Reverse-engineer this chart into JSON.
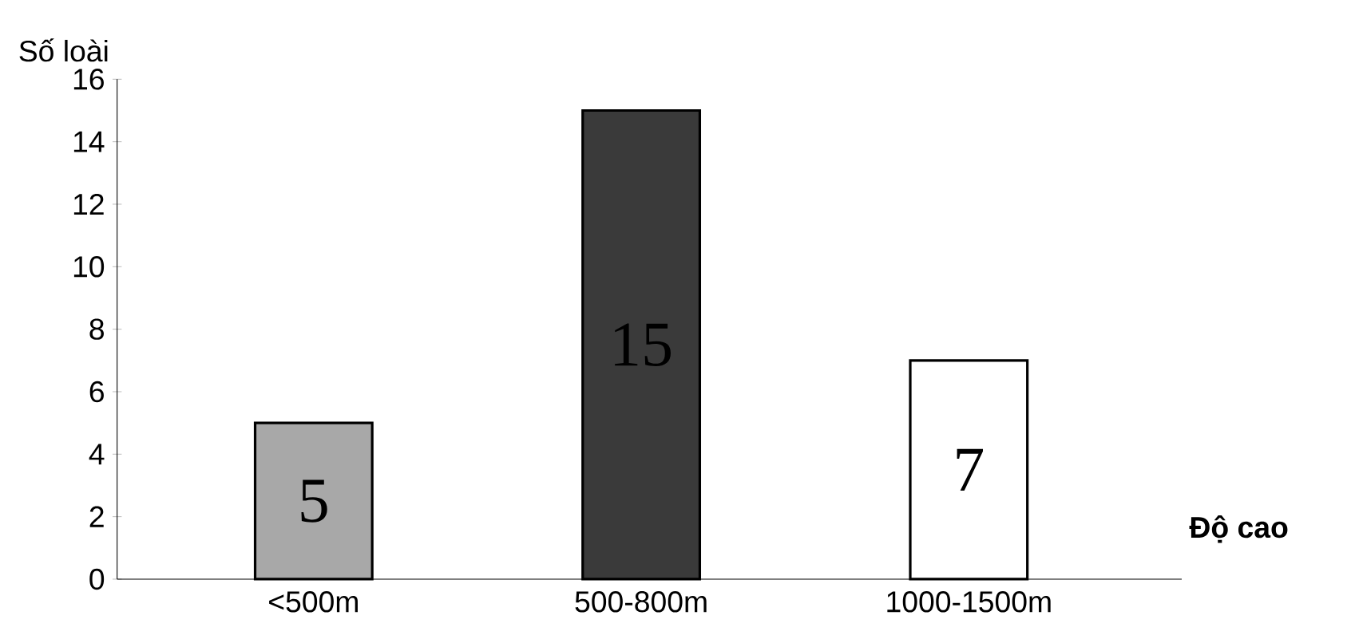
{
  "chart_data": {
    "type": "bar",
    "ylabel": "Số loài",
    "xlabel": "Độ cao",
    "categories": [
      "<500m",
      "500-800m",
      "1000-1500m"
    ],
    "values": [
      5,
      15,
      7
    ],
    "colors": [
      "#a8a8a8",
      "#3a3a3a",
      "#ffffff"
    ],
    "value_labels": [
      "5",
      "15",
      "7"
    ],
    "ylim": [
      0,
      16
    ],
    "yticks": [
      0,
      2,
      4,
      6,
      8,
      10,
      12,
      14,
      16
    ],
    "grid": false
  }
}
